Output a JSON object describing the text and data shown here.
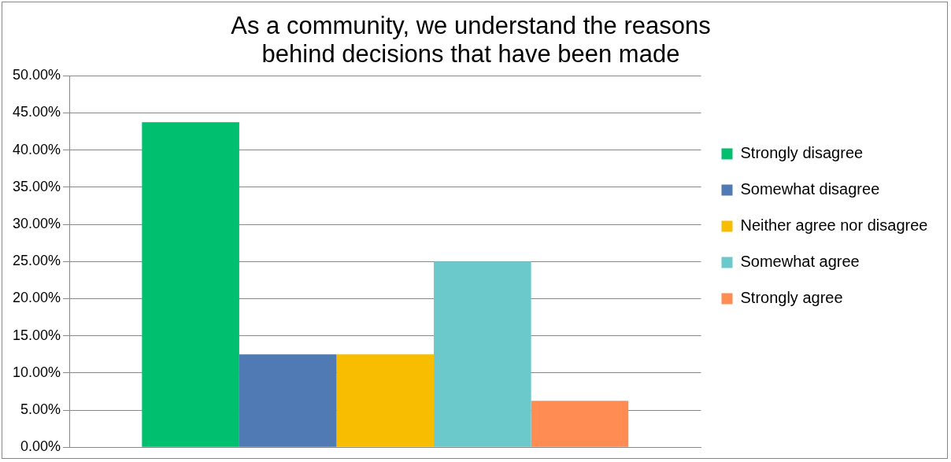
{
  "chart_data": {
    "type": "bar",
    "title": "As a community, we understand the reasons behind decisions that have been made",
    "categories": [
      null
    ],
    "series": [
      {
        "name": "Strongly disagree",
        "color": "#00c06f",
        "values": [
          43.75
        ]
      },
      {
        "name": "Somewhat disagree",
        "color": "#4f7ab3",
        "values": [
          12.5
        ]
      },
      {
        "name": "Neither agree nor disagree",
        "color": "#f9bd00",
        "values": [
          12.5
        ]
      },
      {
        "name": "Somewhat agree",
        "color": "#6bc8cb",
        "values": [
          25
        ]
      },
      {
        "name": "Strongly agree",
        "color": "#ff8c52",
        "values": [
          6.25
        ]
      }
    ],
    "ylim": [
      0,
      50
    ],
    "yticks": [
      {
        "value": 0,
        "label": "0.00%"
      },
      {
        "value": 5,
        "label": "5.00%"
      },
      {
        "value": 10,
        "label": "10.00%"
      },
      {
        "value": 15,
        "label": "15.00%"
      },
      {
        "value": 20,
        "label": "20.00%"
      },
      {
        "value": 25,
        "label": "25.00%"
      },
      {
        "value": 30,
        "label": "30.00%"
      },
      {
        "value": 35,
        "label": "35.00%"
      },
      {
        "value": 40,
        "label": "40.00%"
      },
      {
        "value": 45,
        "label": "45.00%"
      },
      {
        "value": 50,
        "label": "50.00%"
      }
    ],
    "grid": "y",
    "legend": "right"
  }
}
